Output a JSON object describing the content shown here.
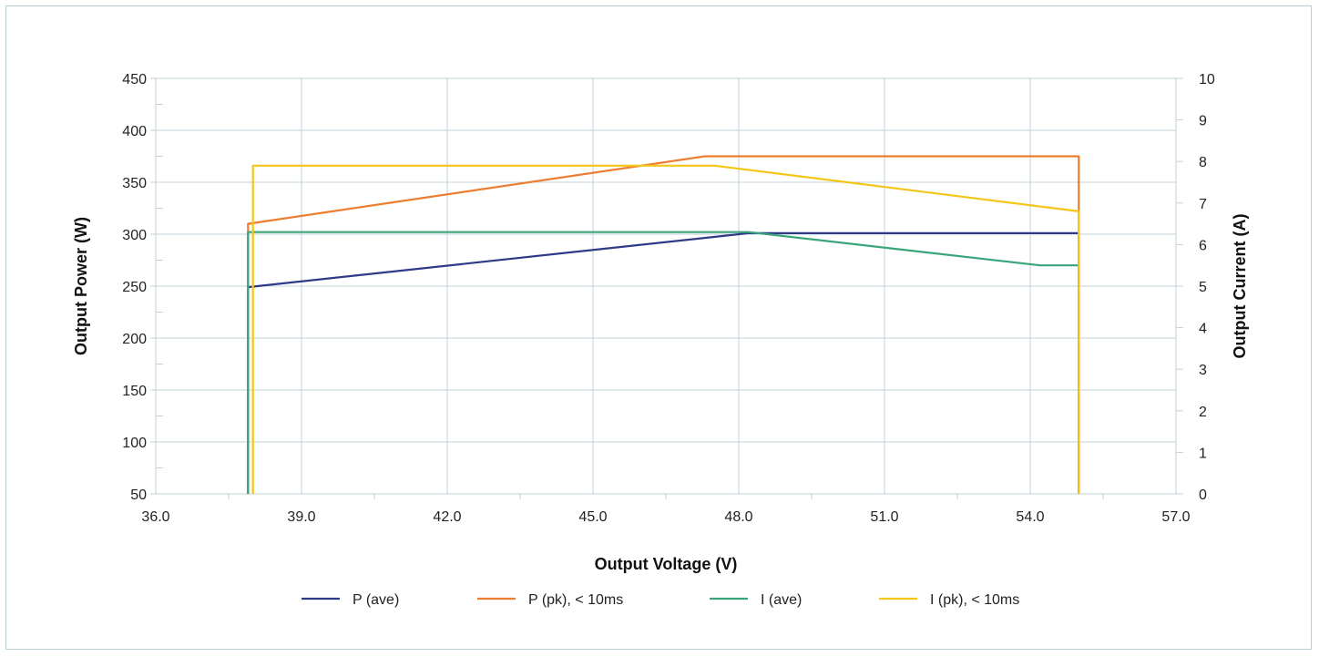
{
  "chart_data": {
    "type": "line",
    "title": "",
    "xlabel": "Output Voltage (V)",
    "ylabel": "Output Power (W)",
    "y2label": "Output Current (A)",
    "xlim": [
      36,
      57
    ],
    "ylim": [
      50,
      450
    ],
    "y2lim": [
      0,
      10
    ],
    "x_ticks": [
      "36.0",
      "39.0",
      "42.0",
      "45.0",
      "48.0",
      "51.0",
      "54.0",
      "57.0"
    ],
    "y_ticks": [
      "50",
      "100",
      "150",
      "200",
      "250",
      "300",
      "350",
      "400",
      "450"
    ],
    "y2_ticks": [
      "0",
      "1",
      "2",
      "3",
      "4",
      "5",
      "6",
      "7",
      "8",
      "9",
      "10"
    ],
    "grid": true,
    "legend_position": "bottom",
    "series": [
      {
        "name": "P (ave)",
        "axis": "left",
        "color": "#2e3a87",
        "x": [
          37.9,
          37.9,
          48.2,
          55.0,
          55.0
        ],
        "y": [
          50,
          249,
          301,
          301,
          50
        ]
      },
      {
        "name": "P (pk), < 10ms",
        "axis": "left",
        "color": "#ed7d31",
        "x": [
          37.9,
          37.9,
          47.3,
          55.0,
          55.0,
          55.0
        ],
        "y": [
          50,
          310,
          375,
          375,
          322,
          50
        ]
      },
      {
        "name": "I (ave)",
        "axis": "right",
        "color": "#3aa57a",
        "x": [
          37.9,
          37.9,
          48.2,
          54.2,
          55.0,
          55.0
        ],
        "y": [
          0,
          6.3,
          6.3,
          5.5,
          5.5,
          0
        ]
      },
      {
        "name": "I (pk), < 10ms",
        "axis": "right",
        "color": "#f5c518",
        "x": [
          38.0,
          38.0,
          47.5,
          55.0,
          55.0
        ],
        "y": [
          0,
          7.9,
          7.9,
          6.8,
          0
        ]
      }
    ]
  }
}
